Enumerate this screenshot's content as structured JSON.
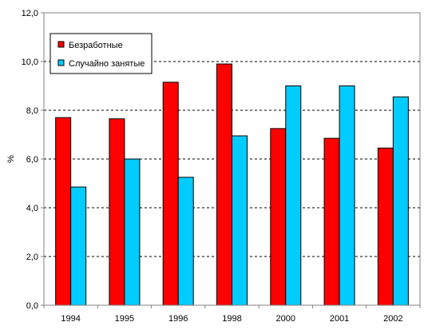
{
  "chart_data": {
    "type": "bar",
    "categories": [
      "1994",
      "1995",
      "1996",
      "1998",
      "2000",
      "2001",
      "2002"
    ],
    "series": [
      {
        "name": "Безработные",
        "color": "#ff0000",
        "values": [
          7.7,
          7.65,
          9.15,
          9.9,
          7.25,
          6.85,
          6.45
        ]
      },
      {
        "name": "Случайно занятые",
        "color": "#00ccff",
        "values": [
          4.85,
          6.0,
          5.25,
          6.95,
          9.0,
          9.0,
          8.55
        ]
      }
    ],
    "ylabel": "%",
    "ylim": [
      0,
      12
    ],
    "yticks": [
      "0,0",
      "2,0",
      "4,0",
      "6,0",
      "8,0",
      "10,0",
      "12,0"
    ],
    "ytick_values": [
      0,
      2,
      4,
      6,
      8,
      10,
      12
    ],
    "grid": "horizontal dashed",
    "legend_position": "top-left"
  }
}
